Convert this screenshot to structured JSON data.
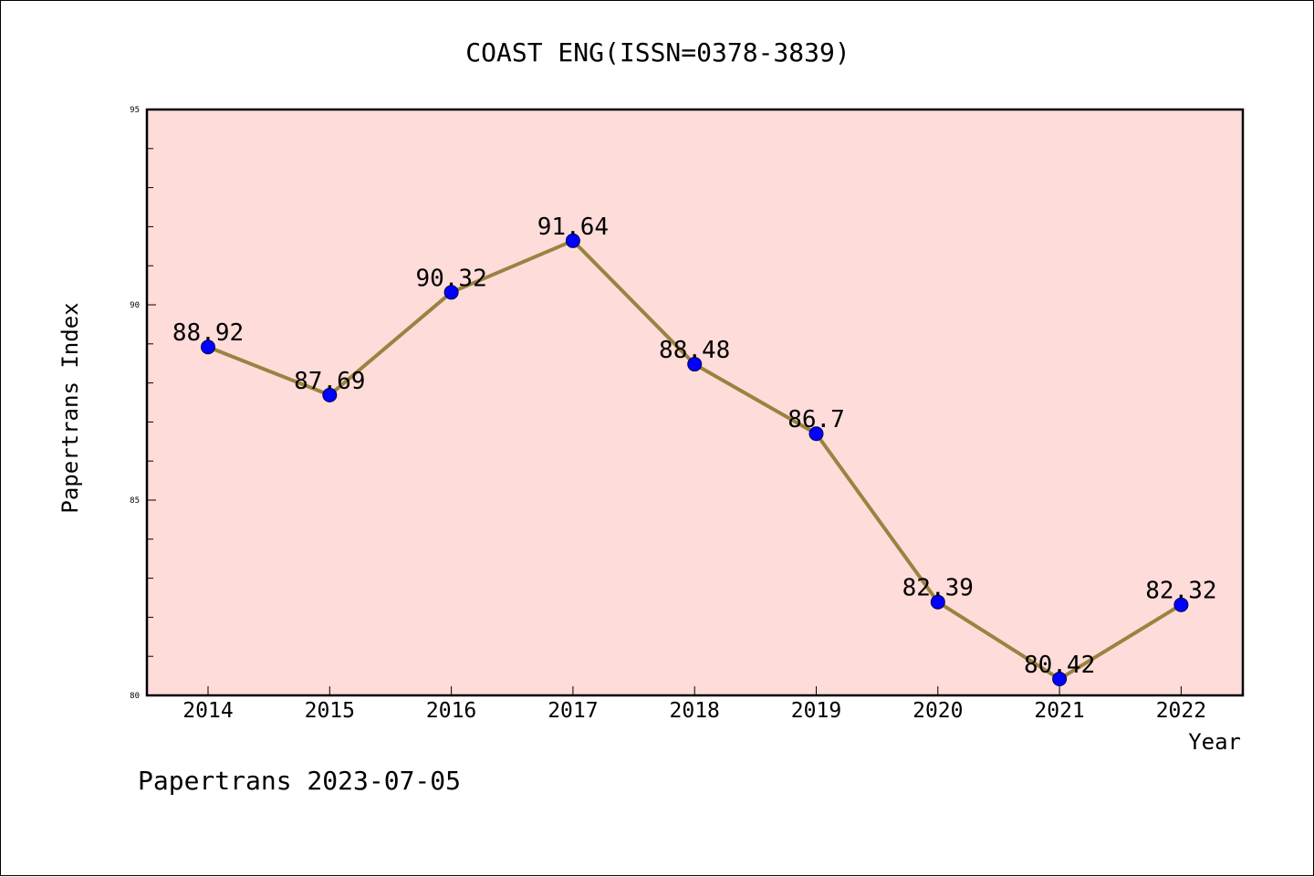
{
  "chart_data": {
    "type": "line",
    "title": "COAST ENG(ISSN=0378-3839)",
    "xlabel": "Year",
    "ylabel": "Papertrans Index",
    "categories": [
      "2014",
      "2015",
      "2016",
      "2017",
      "2018",
      "2019",
      "2020",
      "2021",
      "2022"
    ],
    "values": [
      88.92,
      87.69,
      90.32,
      91.64,
      88.48,
      86.7,
      82.39,
      80.42,
      82.32
    ],
    "data_labels": [
      "88.92",
      "87.69",
      "90.32",
      "91.64",
      "88.48",
      "86.7",
      "82.39",
      "80.42",
      "82.32"
    ],
    "ylim": [
      80,
      95
    ],
    "yticks": [
      80,
      85,
      90,
      95
    ],
    "y_minor_step": 1,
    "grid": false,
    "line_color": "#9a8341",
    "marker_color": "#0000ff",
    "plot_background": "#fedcda"
  },
  "footer": "Papertrans 2023-07-05"
}
